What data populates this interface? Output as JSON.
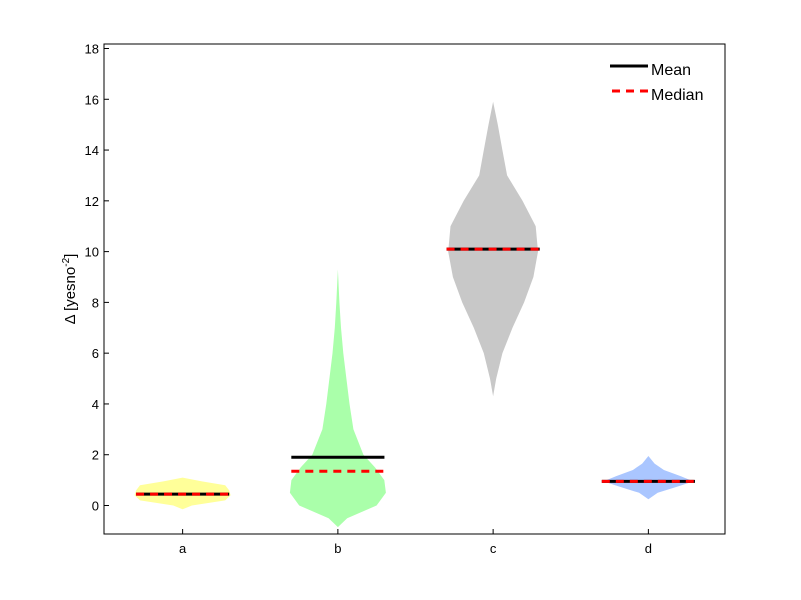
{
  "chart_data": {
    "type": "violin",
    "ylabel_prefix": "Δ [yesno",
    "ylabel_sup": "-2",
    "ylabel_suffix": "]",
    "ylim": [
      -1.2,
      18.2
    ],
    "yticks": [
      0,
      2,
      4,
      6,
      8,
      10,
      12,
      14,
      16,
      18
    ],
    "categories": [
      "a",
      "b",
      "c",
      "d"
    ],
    "legend": {
      "mean_label": "Mean",
      "median_label": "Median",
      "position": "top-right"
    },
    "colors": {
      "mean": "#000000",
      "median": "#ff0000",
      "axis": "#000000"
    },
    "violins": [
      {
        "category": "a",
        "color": "#ffff99",
        "mean": 0.45,
        "median": 0.45,
        "min": -0.15,
        "max": 1.1,
        "profile": [
          [
            -0.15,
            0
          ],
          [
            0.0,
            0.12
          ],
          [
            0.2,
            0.55
          ],
          [
            0.4,
            0.62
          ],
          [
            0.6,
            0.6
          ],
          [
            0.8,
            0.55
          ],
          [
            0.95,
            0.25
          ],
          [
            1.1,
            0
          ]
        ]
      },
      {
        "category": "b",
        "color": "#aaffaa",
        "mean": 1.9,
        "median": 1.35,
        "min": -0.85,
        "max": 9.3,
        "profile": [
          [
            -0.85,
            0
          ],
          [
            -0.5,
            0.12
          ],
          [
            0,
            0.5
          ],
          [
            0.5,
            0.62
          ],
          [
            1,
            0.6
          ],
          [
            1.5,
            0.48
          ],
          [
            2,
            0.33
          ],
          [
            3,
            0.2
          ],
          [
            4,
            0.15
          ],
          [
            5,
            0.11
          ],
          [
            6,
            0.07
          ],
          [
            7,
            0.04
          ],
          [
            8,
            0.02
          ],
          [
            9.3,
            0
          ]
        ]
      },
      {
        "category": "c",
        "color": "#c8c8c8",
        "mean": 10.1,
        "median": 10.1,
        "min": 4.3,
        "max": 15.9,
        "profile": [
          [
            4.3,
            0
          ],
          [
            5,
            0.04
          ],
          [
            6,
            0.12
          ],
          [
            7,
            0.25
          ],
          [
            8,
            0.4
          ],
          [
            9,
            0.52
          ],
          [
            10,
            0.58
          ],
          [
            11,
            0.55
          ],
          [
            12,
            0.38
          ],
          [
            13,
            0.18
          ],
          [
            14,
            0.12
          ],
          [
            15,
            0.06
          ],
          [
            15.9,
            0
          ]
        ]
      },
      {
        "category": "d",
        "color": "#aac6ff",
        "mean": 0.95,
        "median": 0.95,
        "min": 0.25,
        "max": 1.95,
        "profile": [
          [
            0.25,
            0
          ],
          [
            0.5,
            0.12
          ],
          [
            0.75,
            0.38
          ],
          [
            0.95,
            0.58
          ],
          [
            1.15,
            0.42
          ],
          [
            1.4,
            0.2
          ],
          [
            1.65,
            0.08
          ],
          [
            1.95,
            0
          ]
        ]
      }
    ]
  }
}
